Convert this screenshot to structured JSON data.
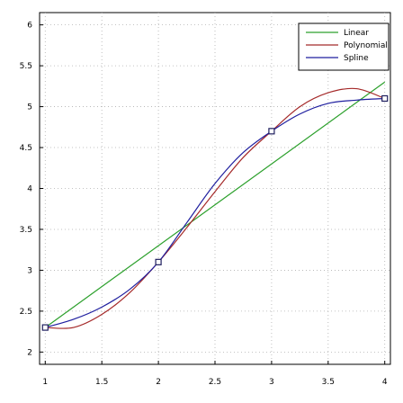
{
  "chart_data": {
    "type": "line",
    "xlim": [
      0.95,
      4.05
    ],
    "ylim": [
      1.85,
      6.15
    ],
    "xticks": [
      1,
      1.5,
      2,
      2.5,
      3,
      3.5,
      4
    ],
    "xtick_labels": [
      "1",
      "1.5",
      "2",
      "2.5",
      "3",
      "3.5",
      "4"
    ],
    "yticks": [
      2,
      2.5,
      3,
      3.5,
      4,
      4.5,
      5,
      5.5,
      6
    ],
    "ytick_labels": [
      "2",
      "2.5",
      "3",
      "3.5",
      "4",
      "4.5",
      "5",
      "5.5",
      "6"
    ],
    "grid": true,
    "legend_position": "top-right",
    "data_points": {
      "x": [
        1,
        2,
        3,
        4
      ],
      "y": [
        2.3,
        3.1,
        4.7,
        5.1
      ],
      "marker": "square"
    },
    "series": [
      {
        "name": "Linear",
        "color": "#2ca02c",
        "x": [
          1,
          4
        ],
        "y": [
          2.3,
          5.3
        ]
      },
      {
        "name": "Polynomial",
        "color": "#a52a2a",
        "x": [
          1,
          1.25,
          1.5,
          1.75,
          2,
          2.25,
          2.5,
          2.75,
          3,
          3.25,
          3.5,
          3.75,
          4
        ],
        "y": [
          2.3,
          2.3,
          2.46,
          2.73,
          3.1,
          3.52,
          3.96,
          4.38,
          4.7,
          5.0,
          5.17,
          5.22,
          5.1
        ]
      },
      {
        "name": "Spline",
        "color": "#1f1f9f",
        "x": [
          1,
          1.25,
          1.5,
          1.75,
          2,
          2.25,
          2.5,
          2.75,
          3,
          3.25,
          3.5,
          3.75,
          4
        ],
        "y": [
          2.3,
          2.4,
          2.55,
          2.77,
          3.1,
          3.58,
          4.06,
          4.44,
          4.7,
          4.91,
          5.04,
          5.08,
          5.1
        ]
      }
    ]
  }
}
